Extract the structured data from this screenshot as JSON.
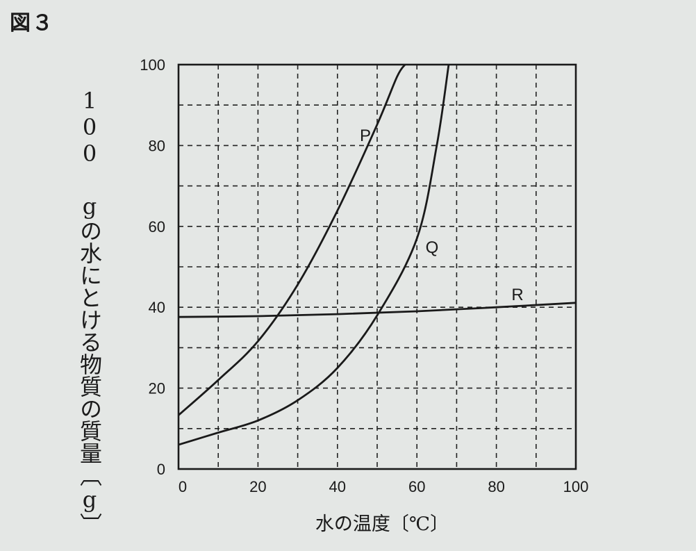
{
  "figure_label": "図３",
  "chart_data": {
    "type": "line",
    "xlabel": "水の温度〔℃〕",
    "ylabel": "100 gの水にとける物質の質量〔g〕",
    "xlim": [
      0,
      100
    ],
    "ylim": [
      0,
      100
    ],
    "xticks": [
      "0",
      "20",
      "40",
      "60",
      "80",
      "100"
    ],
    "yticks": [
      "0",
      "20",
      "40",
      "60",
      "80",
      "100"
    ],
    "grid": "dashed every 10",
    "series": [
      {
        "name": "P",
        "x": [
          0,
          10,
          20,
          30,
          40,
          50,
          55,
          57
        ],
        "y": [
          13.3,
          22.0,
          31.6,
          45.6,
          63.9,
          85.2,
          97.0,
          100.0
        ]
      },
      {
        "name": "Q",
        "x": [
          0,
          10,
          20,
          30,
          40,
          50,
          60,
          65,
          68
        ],
        "y": [
          6.0,
          9.0,
          12.0,
          17.0,
          25.0,
          38.0,
          57.0,
          80.0,
          100.0
        ]
      },
      {
        "name": "R",
        "x": [
          0,
          20,
          40,
          60,
          80,
          100
        ],
        "y": [
          37.6,
          37.8,
          38.3,
          39.0,
          40.0,
          41.1
        ]
      }
    ]
  }
}
